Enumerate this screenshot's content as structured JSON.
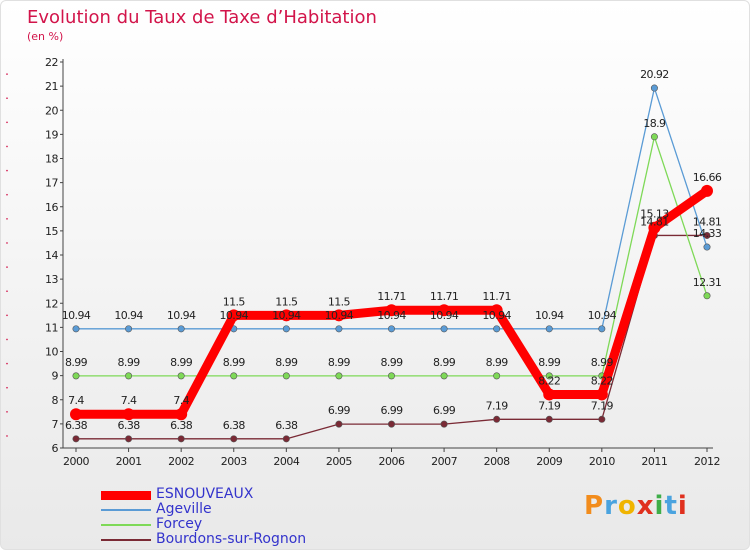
{
  "title": "Evolution du Taux de Taxe d’Habitation",
  "subtitle": "(en %)",
  "logo": {
    "letters": [
      "P",
      "r",
      "o",
      "x",
      "i",
      "t",
      "i"
    ],
    "colors": [
      "#f28c1c",
      "#4aa3df",
      "#f0b400",
      "#e0301e",
      "#3fae49",
      "#4aa3df",
      "#e0301e"
    ]
  },
  "chart_data": {
    "type": "line",
    "title": "Evolution du Taux de Taxe d’Habitation",
    "ylabel": "(en %)",
    "xlabel": "",
    "x": [
      "2000",
      "2001",
      "2002",
      "2003",
      "2004",
      "2005",
      "2006",
      "2007",
      "2008",
      "2009",
      "2010",
      "2011",
      "2012"
    ],
    "ylim": [
      6,
      22
    ],
    "yticks": [
      "6",
      "7",
      "8",
      "9",
      "10",
      "11",
      "12",
      "13",
      "14",
      "15",
      "16",
      "17",
      "18",
      "19",
      "20",
      "21",
      "22"
    ],
    "grid": false,
    "legend": "bottom-left",
    "series": [
      {
        "name": "ESNOUVEAUX",
        "color": "#ff0000",
        "values": [
          7.4,
          7.4,
          7.4,
          11.5,
          11.5,
          11.5,
          11.71,
          11.71,
          11.71,
          8.22,
          8.22,
          15.13,
          16.66
        ],
        "labels": [
          "7.4",
          "7.4",
          "7.4",
          "11.5",
          "11.5",
          "11.5",
          "11.71",
          "11.71",
          "11.71",
          "8.22",
          "8.22",
          "15.13",
          "16.66"
        ]
      },
      {
        "name": "Ageville",
        "color": "#5a9bd5",
        "values": [
          10.94,
          10.94,
          10.94,
          10.94,
          10.94,
          10.94,
          10.94,
          10.94,
          10.94,
          10.94,
          10.94,
          20.92,
          14.33
        ],
        "labels": [
          "10.94",
          "10.94",
          "10.94",
          "10.94",
          "10.94",
          "10.94",
          "10.94",
          "10.94",
          "10.94",
          "10.94",
          "10.94",
          "20.92",
          "14.33"
        ]
      },
      {
        "name": "Forcey",
        "color": "#7ed957",
        "values": [
          8.99,
          8.99,
          8.99,
          8.99,
          8.99,
          8.99,
          8.99,
          8.99,
          8.99,
          8.99,
          8.99,
          18.9,
          12.31
        ],
        "labels": [
          "8.99",
          "8.99",
          "8.99",
          "8.99",
          "8.99",
          "8.99",
          "8.99",
          "8.99",
          "8.99",
          "8.99",
          "8.99",
          "18.9",
          "12.31"
        ]
      },
      {
        "name": "Bourdons-sur-Rognon",
        "color": "#7a2a35",
        "values": [
          6.38,
          6.38,
          6.38,
          6.38,
          6.38,
          6.99,
          6.99,
          6.99,
          7.19,
          7.19,
          7.19,
          14.81,
          14.81
        ],
        "labels": [
          "6.38",
          "6.38",
          "6.38",
          "6.38",
          "6.38",
          "6.99",
          "6.99",
          "6.99",
          "7.19",
          "7.19",
          "7.19",
          "14.81",
          "14.81"
        ]
      }
    ]
  }
}
